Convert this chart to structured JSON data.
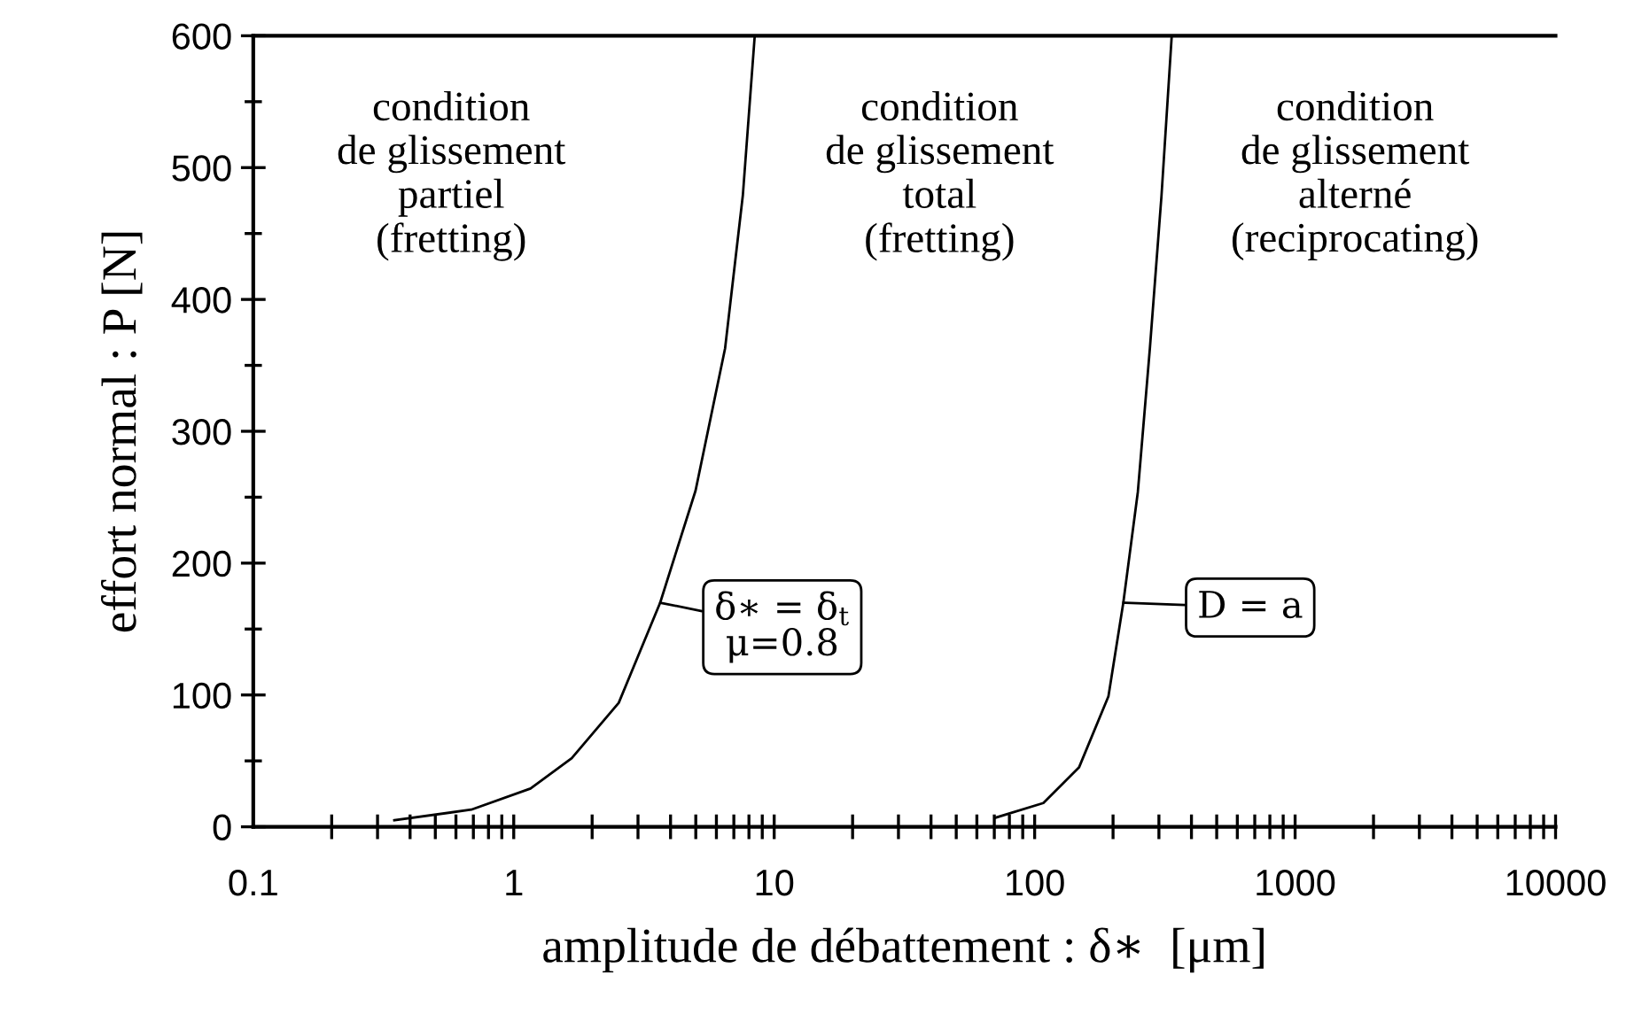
{
  "chart_data": {
    "type": "line",
    "xlabel": "amplitude de débattement : δ∗  [μm]",
    "ylabel": "effort normal : P [N]",
    "log": "x",
    "xlim": [
      0.1,
      10000
    ],
    "xticks": [
      0.1,
      {
        "value": 0.2,
        "label": null
      },
      {
        "value": 0.3,
        "label": null
      },
      {
        "value": 0.4,
        "label": null
      },
      {
        "value": 0.5,
        "label": null
      },
      {
        "value": 0.6,
        "label": null
      },
      {
        "value": 0.7,
        "label": null
      },
      {
        "value": 0.8,
        "label": null
      },
      {
        "value": 0.9,
        "label": null
      },
      1,
      {
        "value": 2,
        "label": null
      },
      {
        "value": 3,
        "label": null
      },
      {
        "value": 4,
        "label": null
      },
      {
        "value": 5,
        "label": null
      },
      {
        "value": 6,
        "label": null
      },
      {
        "value": 7,
        "label": null
      },
      {
        "value": 8,
        "label": null
      },
      {
        "value": 9,
        "label": null
      },
      10,
      {
        "value": 20,
        "label": null
      },
      {
        "value": 30,
        "label": null
      },
      {
        "value": 40,
        "label": null
      },
      {
        "value": 50,
        "label": null
      },
      {
        "value": 60,
        "label": null
      },
      {
        "value": 70,
        "label": null
      },
      {
        "value": 80,
        "label": null
      },
      {
        "value": 90,
        "label": null
      },
      100,
      {
        "value": 200,
        "label": null
      },
      {
        "value": 300,
        "label": null
      },
      {
        "value": 400,
        "label": null
      },
      {
        "value": 500,
        "label": null
      },
      {
        "value": 600,
        "label": null
      },
      {
        "value": 700,
        "label": null
      },
      {
        "value": 800,
        "label": null
      },
      {
        "value": 900,
        "label": null
      },
      1000,
      {
        "value": 2000,
        "label": null
      },
      {
        "value": 3000,
        "label": null
      },
      {
        "value": 4000,
        "label": null
      },
      {
        "value": 5000,
        "label": null
      },
      {
        "value": 6000,
        "label": null
      },
      {
        "value": 7000,
        "label": null
      },
      {
        "value": 8000,
        "label": null
      },
      {
        "value": 9000,
        "label": null
      },
      10000
    ],
    "ylim": [
      0,
      600
    ],
    "yticks": [
      0,
      {
        "value": 50,
        "label": null
      },
      100,
      {
        "value": 150,
        "label": null
      },
      200,
      {
        "value": 250,
        "label": null
      },
      300,
      {
        "value": 350,
        "label": null
      },
      400,
      {
        "value": 450,
        "label": null
      },
      500,
      {
        "value": 550,
        "label": null
      },
      600
    ],
    "grid": false,
    "legend": false,
    "marker": "none",
    "line_style": "solid",
    "series": [
      {
        "color": "#000000",
        "x": [
          0.348,
          0.687,
          1.16,
          1.67,
          2.53,
          3.65,
          4.99,
          6.48,
          7.58,
          8.42
        ],
        "values": [
          5,
          13,
          29,
          52,
          94,
          170,
          255,
          363,
          479,
          600
        ]
      },
      {
        "color": "#000000",
        "x": [
          71,
          108,
          148,
          192,
          219,
          249,
          277,
          307,
          336
        ],
        "values": [
          7,
          18,
          45,
          99,
          170,
          254,
          363,
          479,
          600
        ]
      }
    ],
    "annotations": [
      "condition\nde glissement\npartiel\n(fretting)",
      "condition\nde glissement\ntotal\n(fretting)",
      "condition\nde glissement\nalterné\n(reciprocating)",
      {
        "text": "δ∗ = δ$_{t}$\nμ=0.8",
        "x": 3.65,
        "y": 170
      },
      {
        "text": "D = a",
        "x": 219,
        "y": 170
      }
    ]
  }
}
